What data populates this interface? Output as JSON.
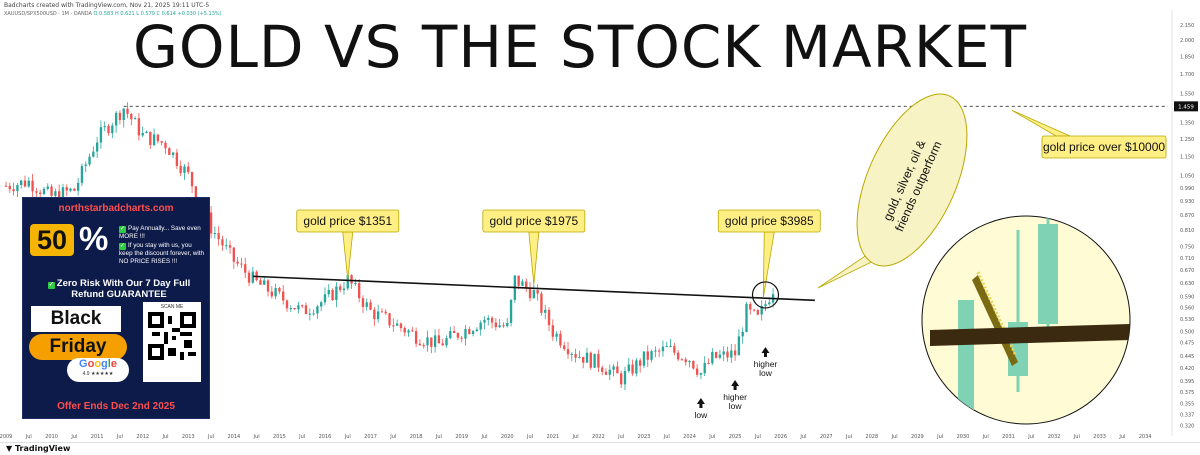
{
  "header": {
    "credit": "Badcharts created with TradingView.com, Nov 21, 2025 19:11 UTC-5",
    "symbol": "XAUUSD/SPX500USD · 1M · OANDA",
    "ohlc_o": "O 0.583",
    "ohlc_h": "H 0.621",
    "ohlc_l": "L 0.579",
    "ohlc_c": "C 0.614",
    "change": "+0.030 (+5.13%)"
  },
  "title": "GOLD VS THE STOCK MARKET",
  "footer": {
    "brand": "TradingView"
  },
  "promo": {
    "site": "northstarbadcharts.com",
    "percent_number": "50",
    "percent_sign": "%",
    "bullet1": "Pay Annually... Save even MORE !!!",
    "bullet2": "If you stay with us, you keep the discount forever, with NO PRICE RISES !!!",
    "guarantee": "Zero Risk With Our 7 Day Full Refund GUARANTEE",
    "black": "Black",
    "friday": "Friday",
    "scan": "SCAN ME",
    "rating": "4.9 ★★★★★",
    "offer": "Offer Ends Dec 2nd 2025"
  },
  "chart_data": {
    "type": "candlestick",
    "symbol": "XAUUSD/SPX500USD",
    "interval": "1M",
    "colors": {
      "up": "#26a69a",
      "down": "#ef5350",
      "trendline": "#111111",
      "callout": "#ffef84",
      "callout_border": "#b8a800"
    },
    "y_scale": "log",
    "ylim": [
      0.31,
      2.2
    ],
    "y_ticks": [
      2.15,
      2.0,
      1.85,
      1.7,
      1.55,
      1.45,
      1.35,
      1.25,
      1.15,
      1.05,
      0.99,
      0.93,
      0.87,
      0.81,
      0.75,
      0.71,
      0.67,
      0.63,
      0.59,
      0.56,
      0.53,
      0.5,
      0.475,
      0.445,
      0.42,
      0.395,
      0.375,
      0.355,
      0.337,
      0.32
    ],
    "x_range": [
      "2009-01",
      "2034-06"
    ],
    "x_ticks": [
      "2009",
      "Jul",
      "2010",
      "Jul",
      "2011",
      "Jul",
      "2012",
      "Jul",
      "2013",
      "Jul",
      "2014",
      "Jul",
      "2015",
      "Jul",
      "2016",
      "Jul",
      "2017",
      "Jul",
      "2018",
      "Jul",
      "2019",
      "Jul",
      "2020",
      "Jul",
      "2021",
      "Jul",
      "2022",
      "Jul",
      "2023",
      "Jul",
      "2024",
      "Jul",
      "2025",
      "Jul",
      "2026",
      "Jul",
      "2027",
      "Jul",
      "2028",
      "Jul",
      "2029",
      "Jul",
      "2030",
      "Jul",
      "2031",
      "Jul",
      "2032",
      "Jul",
      "2033",
      "Jul",
      "2034"
    ],
    "price_series": {
      "x": [
        "2009-01",
        "2009-07",
        "2010-01",
        "2010-07",
        "2011-01",
        "2011-08",
        "2012-01",
        "2012-07",
        "2013-01",
        "2013-07",
        "2014-01",
        "2014-07",
        "2015-01",
        "2015-07",
        "2016-01",
        "2016-07",
        "2017-01",
        "2017-07",
        "2018-01",
        "2018-07",
        "2019-01",
        "2019-07",
        "2020-01",
        "2020-03",
        "2020-08",
        "2021-01",
        "2021-07",
        "2022-01",
        "2022-07",
        "2023-01",
        "2023-07",
        "2024-01",
        "2024-04",
        "2024-07",
        "2025-01",
        "2025-04",
        "2025-07",
        "2025-11"
      ],
      "y": [
        1.0,
        1.02,
        0.95,
        0.98,
        1.25,
        1.45,
        1.27,
        1.22,
        1.05,
        0.82,
        0.7,
        0.63,
        0.59,
        0.55,
        0.58,
        0.64,
        0.55,
        0.52,
        0.49,
        0.47,
        0.5,
        0.53,
        0.51,
        0.64,
        0.6,
        0.5,
        0.45,
        0.43,
        0.4,
        0.44,
        0.46,
        0.44,
        0.41,
        0.44,
        0.45,
        0.55,
        0.53,
        0.614
      ]
    },
    "reference_line": {
      "y": 1.459,
      "label": "1.459",
      "style": "dashed",
      "from": "2011-08",
      "to": "2034-06"
    },
    "trendline": {
      "from": [
        "2014-06",
        0.65
      ],
      "to": [
        "2026-10",
        0.58
      ]
    },
    "annotations": [
      {
        "text": "gold price $1351",
        "x": "2016-07",
        "y": 0.64
      },
      {
        "text": "gold price $1975",
        "x": "2020-08",
        "y": 0.625
      },
      {
        "text": "gold price $3985",
        "x": "2025-10",
        "y": 0.61
      },
      {
        "text": "gold price over $10000",
        "x": "2027-06",
        "y": 1.459
      },
      {
        "text": "gold, silver, oil & friends outperform",
        "x": "2027-06",
        "y": 0.9
      },
      {
        "text": "low",
        "x": "2024-04",
        "y": 0.41
      },
      {
        "text": "higher low",
        "x": "2025-01",
        "y": 0.45
      },
      {
        "text": "higher low",
        "x": "2025-09",
        "y": 0.53
      }
    ]
  }
}
